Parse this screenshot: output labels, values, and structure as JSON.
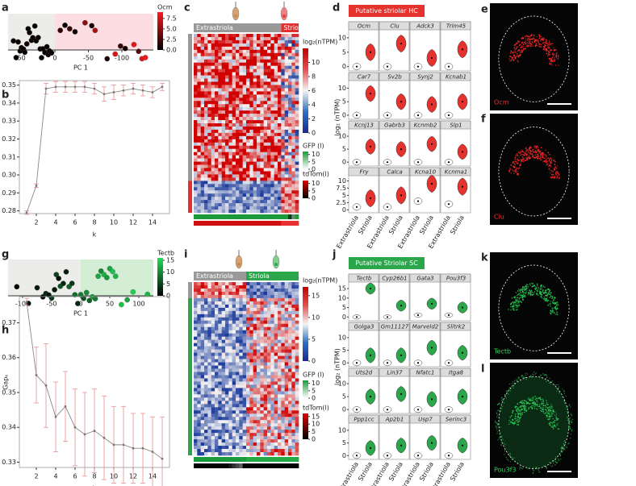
{
  "a": {
    "letter": "a",
    "xlabel": "PC 1",
    "xlim": [
      70,
      -147
    ],
    "xticks": [
      50,
      0,
      -50,
      -100
    ],
    "x": [
      62,
      58,
      55,
      52,
      50,
      47,
      45,
      42,
      40,
      38,
      35,
      33,
      30,
      28,
      25,
      22,
      20,
      18,
      15,
      12,
      10,
      8,
      5,
      -8,
      -15,
      -22,
      -30,
      -45,
      -55,
      -60,
      -78,
      -90,
      -98,
      -105,
      -118,
      -125,
      -130,
      -135
    ],
    "color_values": [
      0.3,
      0.2,
      0.4,
      0.1,
      0.5,
      0.2,
      0.3,
      0.6,
      0.1,
      0.2,
      0.4,
      0.3,
      0.2,
      0.1,
      0.5,
      0.3,
      0.2,
      0.4,
      0.3,
      0.1,
      0.6,
      0.2,
      0.3,
      1.5,
      0.2,
      2,
      0.5,
      5,
      0.8,
      6,
      1,
      7.5,
      2,
      0.5,
      8,
      3,
      7.9,
      8.5
    ],
    "colorbar": {
      "title": "Ocm",
      "lim": [
        0,
        9
      ],
      "ticks": [
        7.5,
        {
          "value": 5,
          "label": "5.0"
        },
        2.5,
        {
          "value": 0,
          "label": "0.0"
        }
      ]
    }
  },
  "b": {
    "letter": "b",
    "xlabel": "k",
    "xlim": [
      0.25,
      15.75
    ],
    "xticks": [
      2,
      4,
      6,
      8,
      10,
      12,
      14
    ],
    "ylim": [
      0.2785,
      0.3525
    ],
    "yticks": [
      0.28,
      0.29,
      {
        "value": 0.3,
        "label": "0.30"
      },
      0.31,
      0.32,
      0.33,
      0.34,
      0.35
    ],
    "k": [
      1,
      2,
      3,
      4,
      5,
      6,
      7,
      8,
      9,
      10,
      11,
      12,
      13,
      14,
      15
    ],
    "values": [
      0.279,
      0.294,
      0.348,
      0.349,
      0.349,
      0.349,
      0.349,
      0.348,
      0.345,
      0.346,
      0.347,
      0.348,
      0.347,
      0.346,
      0.349
    ],
    "errors": [
      0.001,
      0.001,
      0.003,
      0.003,
      0.003,
      0.003,
      0.003,
      0.003,
      0.004,
      0.004,
      0.003,
      0.003,
      0.003,
      0.003,
      0.002
    ]
  },
  "c": {
    "letter": "c",
    "groups": [
      "Extrastriola",
      "Striola"
    ],
    "legends": [
      {
        "title": "log₂(nTPM)",
        "lim": [
          0,
          12
        ],
        "ticks": [
          10,
          8,
          6,
          4,
          2,
          0
        ]
      },
      {
        "title": "GFP (l)",
        "lim": [
          0,
          12
        ],
        "ticks": [
          10,
          5,
          0
        ]
      },
      {
        "title": "tdTom(l)",
        "lim": [
          0,
          12
        ],
        "ticks": [
          10,
          5,
          0
        ]
      }
    ]
  },
  "d": {
    "letter": "d",
    "header": "Putative striolar HC",
    "ylabel": "log₂ (nTPM)",
    "groups": [
      "Extrastriola",
      "Striola"
    ],
    "rows": [
      {
        "ylim": [
          -1.5,
          12.5
        ],
        "yticks": [
          0,
          5,
          10
        ]
      },
      {
        "ylim": [
          -1.5,
          12.5
        ],
        "yticks": [
          0,
          5,
          10
        ]
      },
      {
        "ylim": [
          -1.5,
          12.5
        ],
        "yticks": [
          0,
          5,
          10
        ]
      },
      {
        "ylim": [
          -1,
          11.5
        ],
        "yticks": [
          0,
          2.5,
          5,
          7.5,
          10
        ]
      }
    ],
    "genes": [
      "Ocm",
      "Clu",
      "Adck3",
      "Trim45",
      "Car7",
      "Sv2b",
      "Synj2",
      "Kcnab1",
      "Kcnj13",
      "Gabrb3",
      "Kcnmb2",
      "Slp1",
      "Fry",
      "Calca",
      "Kcna10",
      "Kcnma1"
    ],
    "medians": [
      [
        0,
        5
      ],
      [
        0,
        8
      ],
      [
        0,
        3
      ],
      [
        0,
        6
      ],
      [
        0,
        8
      ],
      [
        0,
        5
      ],
      [
        0,
        4
      ],
      [
        0,
        5
      ],
      [
        0,
        6
      ],
      [
        0,
        5
      ],
      [
        0,
        7
      ],
      [
        0,
        4
      ],
      [
        1,
        4
      ],
      [
        1,
        5
      ],
      [
        3,
        9
      ],
      [
        2,
        8
      ]
    ]
  },
  "e": {
    "letter": "e",
    "label": "Ocm"
  },
  "f": {
    "letter": "f",
    "label": "Clu"
  },
  "g": {
    "letter": "g",
    "xlabel": "PC 1",
    "xlim": [
      -125,
      125
    ],
    "xticks": [
      -100,
      -50,
      0,
      50,
      100
    ],
    "x": [
      -110,
      -90,
      -75,
      -65,
      -60,
      -55,
      -50,
      -45,
      -42,
      -38,
      -35,
      -30,
      -25,
      -20,
      -15,
      -10,
      -5,
      0,
      5,
      10,
      15,
      20,
      25,
      30,
      35,
      40,
      45,
      50,
      55,
      60,
      70,
      80,
      90,
      115
    ],
    "color_values": [
      0.5,
      1,
      2,
      0.5,
      3,
      1,
      4,
      2,
      5,
      1,
      6,
      3,
      2,
      7,
      4,
      8,
      3,
      9,
      6,
      10,
      7,
      11,
      9,
      12,
      10,
      13,
      11,
      12,
      14,
      13,
      14,
      12,
      15,
      13
    ],
    "colorbar": {
      "title": "Tectb",
      "lim": [
        0,
        16
      ],
      "ticks": [
        15,
        10,
        5,
        0
      ]
    }
  },
  "h": {
    "letter": "h",
    "xlabel": "k",
    "ylabel": "Gapₖ",
    "xlim": [
      0.25,
      15.75
    ],
    "xticks": [
      2,
      4,
      6,
      8,
      10,
      12,
      14
    ],
    "ylim": [
      0.3285,
      0.3775
    ],
    "yticks": [
      0.33,
      0.34,
      0.35,
      0.36,
      0.37
    ],
    "k": [
      1,
      2,
      3,
      4,
      5,
      6,
      7,
      8,
      9,
      10,
      11,
      12,
      13,
      14,
      15
    ],
    "values": [
      0.376,
      0.355,
      0.352,
      0.343,
      0.346,
      0.34,
      0.338,
      0.339,
      0.337,
      0.335,
      0.335,
      0.334,
      0.334,
      0.333,
      0.331
    ],
    "errors": [
      0.001,
      0.008,
      0.012,
      0.01,
      0.01,
      0.011,
      0.012,
      0.012,
      0.012,
      0.011,
      0.011,
      0.01,
      0.01,
      0.01,
      0.012
    ]
  },
  "i": {
    "letter": "i",
    "groups": [
      "Extrastriola",
      "Striola"
    ],
    "legends": [
      {
        "title": "log₂(nTPM)",
        "lim": [
          0,
          17
        ],
        "ticks": [
          15,
          10,
          5,
          0
        ]
      },
      {
        "title": "GFP (l)",
        "lim": [
          0,
          12
        ],
        "ticks": [
          10,
          5,
          0
        ]
      },
      {
        "title": "tdTom(l)",
        "lim": [
          0,
          17
        ],
        "ticks": [
          15,
          10,
          5,
          0
        ]
      }
    ]
  },
  "j": {
    "letter": "j",
    "header": "Putative Striolar SC",
    "ylabel": "log₂ (nTPM)",
    "groups": [
      "Extrastriola",
      "Striola"
    ],
    "rows": [
      {
        "ylim": [
          -2,
          18
        ],
        "yticks": [
          0,
          5,
          10,
          15
        ]
      },
      {
        "ylim": [
          -1.5,
          12.5
        ],
        "yticks": [
          0,
          5,
          10
        ]
      },
      {
        "ylim": [
          -1.5,
          12.5
        ],
        "yticks": [
          0,
          5,
          10
        ]
      },
      {
        "ylim": [
          -1.5,
          12.5
        ],
        "yticks": [
          0,
          5,
          10
        ]
      }
    ],
    "genes": [
      "Tectb",
      "Cyp26b1",
      "Gata3",
      "Pou3f3",
      "Golga3",
      "Gm11127",
      "Marveld2",
      "Slitrk2",
      "Uts2d",
      "Lin37",
      "Nfatc1",
      "Itga8",
      "Ppp1cc",
      "Ap2b1",
      "Usp7",
      "Serinc3"
    ],
    "medians": [
      [
        0,
        15
      ],
      [
        0,
        6
      ],
      [
        1,
        7
      ],
      [
        1,
        5
      ],
      [
        0,
        3
      ],
      [
        0,
        3
      ],
      [
        0,
        6
      ],
      [
        0,
        4
      ],
      [
        0,
        5
      ],
      [
        0,
        6
      ],
      [
        0,
        4
      ],
      [
        0,
        5
      ],
      [
        0,
        3
      ],
      [
        0,
        4
      ],
      [
        0,
        5
      ],
      [
        0,
        4
      ]
    ]
  },
  "k": {
    "letter": "k",
    "label": "Tectb"
  },
  "l": {
    "letter": "l",
    "label": "Pou3f3"
  }
}
